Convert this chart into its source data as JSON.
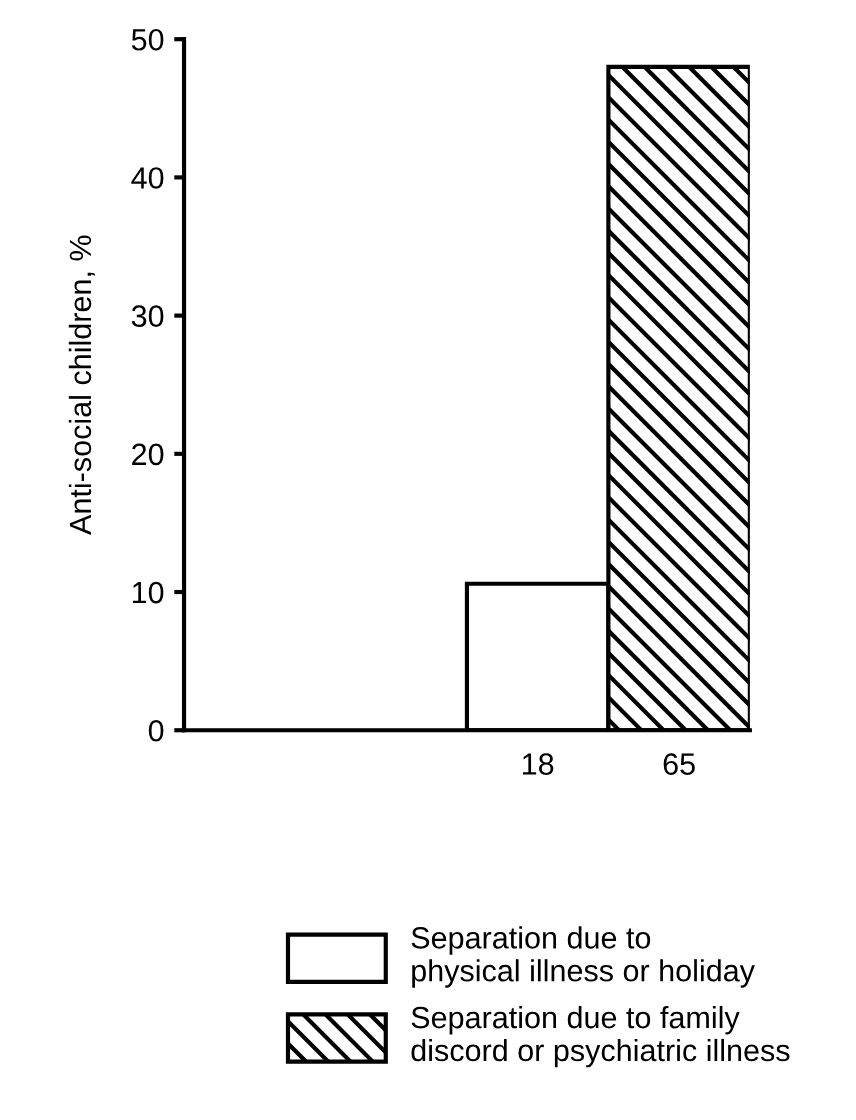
{
  "chart_data": {
    "type": "bar",
    "ylabel": "Anti-social children, %",
    "categories": [
      null,
      null,
      "18",
      "65"
    ],
    "series": [
      {
        "name": "Separation due to\nphysical illness or holiday",
        "color": "#ffffff",
        "values": [
          null,
          null,
          10.6,
          null
        ]
      },
      {
        "name": "Separation due to family\ndiscord or psychiatric illness",
        "color": "#000000",
        "values": [
          null,
          null,
          null,
          48
        ]
      }
    ],
    "stacked": true,
    "ylim": [
      0,
      50
    ],
    "yticks": [
      0,
      10,
      20,
      30,
      40,
      50
    ],
    "grid": false,
    "legend": "bottom"
  }
}
